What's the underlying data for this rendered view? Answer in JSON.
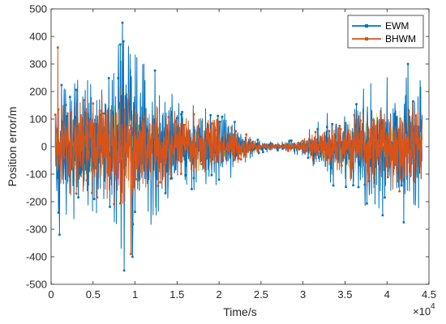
{
  "chart_data": {
    "type": "line",
    "title": "",
    "xlabel": "Time/s",
    "ylabel": "Position error/m",
    "x_exponent_label": "10",
    "x_exponent_power": "4",
    "xlim": [
      0,
      4.5
    ],
    "ylim": [
      -500,
      500
    ],
    "x_ticks": [
      0,
      0.5,
      1,
      1.5,
      2,
      2.5,
      3,
      3.5,
      4,
      4.5
    ],
    "x_tick_labels": [
      "0",
      "0.5",
      "1",
      "1.5",
      "2",
      "2.5",
      "3",
      "3.5",
      "4",
      "4.5"
    ],
    "y_ticks": [
      -500,
      -400,
      -300,
      -200,
      -100,
      0,
      100,
      200,
      300,
      400,
      500
    ],
    "y_tick_labels": [
      "-500",
      "-400",
      "-300",
      "-200",
      "-100",
      "0",
      "100",
      "200",
      "300",
      "400",
      "500"
    ],
    "x_data_range": [
      0.05,
      4.42
    ],
    "grid": false,
    "legend_position": "top-right",
    "series": [
      {
        "name": "EWM",
        "color": "#0072BD",
        "envelope_x": [
          0.05,
          0.5,
          0.9,
          1.5,
          2.0,
          2.5,
          2.7,
          3.0,
          3.5,
          4.0,
          4.42
        ],
        "envelope_amplitude": [
          250,
          300,
          420,
          180,
          150,
          25,
          15,
          45,
          180,
          260,
          250
        ],
        "extremes": [
          {
            "x": 0.85,
            "y": 450
          },
          {
            "x": 0.87,
            "y": -450
          },
          {
            "x": 0.1,
            "y": -320
          },
          {
            "x": 0.97,
            "y": -400
          },
          {
            "x": 4.25,
            "y": 300
          },
          {
            "x": 4.2,
            "y": -275
          }
        ]
      },
      {
        "name": "BHWM",
        "color": "#D95319",
        "envelope_x": [
          0.05,
          0.5,
          0.9,
          1.5,
          2.0,
          2.5,
          2.7,
          3.0,
          3.5,
          4.0,
          4.42
        ],
        "envelope_amplitude": [
          170,
          190,
          230,
          130,
          100,
          18,
          10,
          30,
          120,
          170,
          170
        ],
        "extremes": [
          {
            "x": 0.08,
            "y": 360
          },
          {
            "x": 0.95,
            "y": -390
          }
        ]
      }
    ]
  }
}
